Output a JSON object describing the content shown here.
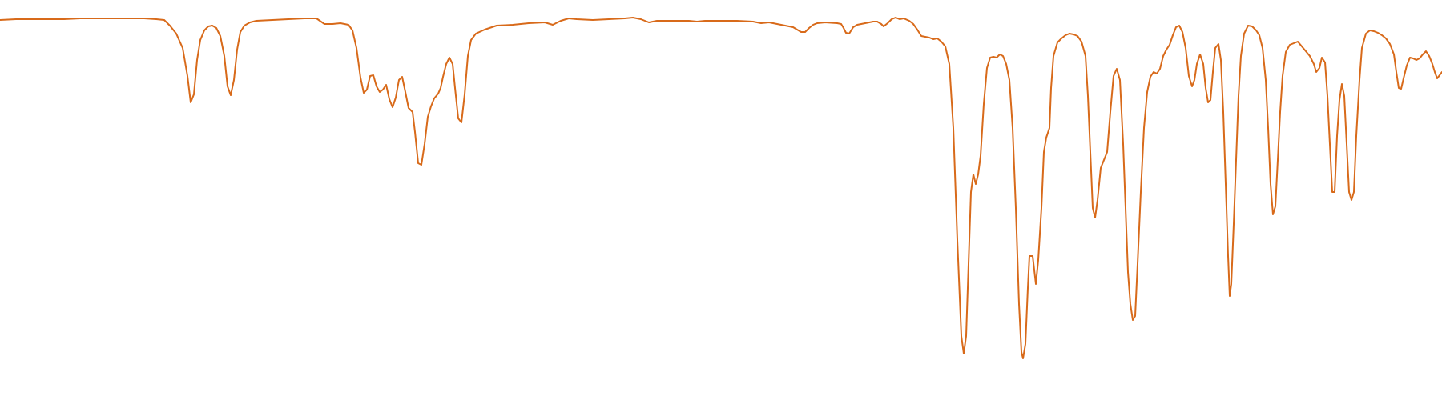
{
  "chart_data": {
    "type": "line",
    "title": "",
    "xlabel": "",
    "ylabel": "",
    "x_domain": [
      0,
      1800
    ],
    "y_domain": [
      0,
      500
    ],
    "y_inverted": true,
    "grid": false,
    "legend": "none",
    "series": [
      {
        "color": "#d86a1a",
        "points": [
          [
            0,
            25
          ],
          [
            20,
            24
          ],
          [
            40,
            24
          ],
          [
            60,
            24
          ],
          [
            80,
            24
          ],
          [
            100,
            23
          ],
          [
            120,
            23
          ],
          [
            140,
            23
          ],
          [
            160,
            23
          ],
          [
            180,
            23
          ],
          [
            195,
            24
          ],
          [
            205,
            25
          ],
          [
            212,
            32
          ],
          [
            220,
            42
          ],
          [
            228,
            60
          ],
          [
            234,
            95
          ],
          [
            238,
            128
          ],
          [
            242,
            118
          ],
          [
            246,
            75
          ],
          [
            250,
            50
          ],
          [
            255,
            38
          ],
          [
            260,
            33
          ],
          [
            265,
            32
          ],
          [
            270,
            35
          ],
          [
            275,
            45
          ],
          [
            280,
            70
          ],
          [
            284,
            108
          ],
          [
            288,
            119
          ],
          [
            292,
            100
          ],
          [
            296,
            62
          ],
          [
            300,
            40
          ],
          [
            305,
            32
          ],
          [
            312,
            28
          ],
          [
            320,
            26
          ],
          [
            340,
            25
          ],
          [
            360,
            24
          ],
          [
            380,
            23
          ],
          [
            395,
            23
          ],
          [
            405,
            30
          ],
          [
            415,
            30
          ],
          [
            425,
            29
          ],
          [
            435,
            31
          ],
          [
            440,
            38
          ],
          [
            445,
            60
          ],
          [
            450,
            97
          ],
          [
            454,
            116
          ],
          [
            458,
            112
          ],
          [
            462,
            95
          ],
          [
            466,
            94
          ],
          [
            470,
            108
          ],
          [
            474,
            115
          ],
          [
            478,
            112
          ],
          [
            482,
            106
          ],
          [
            486,
            124
          ],
          [
            490,
            134
          ],
          [
            494,
            122
          ],
          [
            498,
            100
          ],
          [
            502,
            96
          ],
          [
            506,
            115
          ],
          [
            510,
            135
          ],
          [
            515,
            140
          ],
          [
            518,
            165
          ],
          [
            522,
            204
          ],
          [
            526,
            206
          ],
          [
            530,
            180
          ],
          [
            534,
            146
          ],
          [
            538,
            133
          ],
          [
            542,
            123
          ],
          [
            547,
            117
          ],
          [
            550,
            110
          ],
          [
            553,
            96
          ],
          [
            557,
            80
          ],
          [
            561,
            72
          ],
          [
            565,
            80
          ],
          [
            568,
            110
          ],
          [
            572,
            148
          ],
          [
            576,
            153
          ],
          [
            580,
            118
          ],
          [
            584,
            70
          ],
          [
            588,
            50
          ],
          [
            594,
            42
          ],
          [
            605,
            37
          ],
          [
            620,
            32
          ],
          [
            640,
            31
          ],
          [
            660,
            29
          ],
          [
            680,
            28
          ],
          [
            690,
            31
          ],
          [
            700,
            26
          ],
          [
            710,
            23
          ],
          [
            720,
            24
          ],
          [
            740,
            25
          ],
          [
            760,
            24
          ],
          [
            780,
            23
          ],
          [
            790,
            22
          ],
          [
            800,
            24
          ],
          [
            810,
            28
          ],
          [
            820,
            26
          ],
          [
            840,
            26
          ],
          [
            860,
            26
          ],
          [
            870,
            27
          ],
          [
            880,
            26
          ],
          [
            900,
            26
          ],
          [
            920,
            26
          ],
          [
            940,
            27
          ],
          [
            950,
            29
          ],
          [
            960,
            28
          ],
          [
            970,
            30
          ],
          [
            980,
            32
          ],
          [
            990,
            34
          ],
          [
            1000,
            40
          ],
          [
            1005,
            40
          ],
          [
            1010,
            35
          ],
          [
            1015,
            31
          ],
          [
            1020,
            29
          ],
          [
            1030,
            28
          ],
          [
            1045,
            29
          ],
          [
            1050,
            30
          ],
          [
            1053,
            35
          ],
          [
            1056,
            41
          ],
          [
            1060,
            42
          ],
          [
            1065,
            34
          ],
          [
            1070,
            31
          ],
          [
            1075,
            30
          ],
          [
            1080,
            29
          ],
          [
            1085,
            28
          ],
          [
            1090,
            27
          ],
          [
            1095,
            27
          ],
          [
            1100,
            30
          ],
          [
            1103,
            33
          ],
          [
            1108,
            29
          ],
          [
            1113,
            24
          ],
          [
            1118,
            22
          ],
          [
            1123,
            24
          ],
          [
            1128,
            23
          ],
          [
            1135,
            26
          ],
          [
            1140,
            30
          ],
          [
            1145,
            37
          ],
          [
            1150,
            45
          ],
          [
            1155,
            46
          ],
          [
            1160,
            47
          ],
          [
            1165,
            49
          ],
          [
            1170,
            48
          ],
          [
            1175,
            52
          ],
          [
            1180,
            58
          ],
          [
            1185,
            80
          ],
          [
            1190,
            160
          ],
          [
            1195,
            300
          ],
          [
            1200,
            420
          ],
          [
            1203,
            442
          ],
          [
            1206,
            420
          ],
          [
            1209,
            330
          ],
          [
            1212,
            240
          ],
          [
            1215,
            218
          ],
          [
            1218,
            230
          ],
          [
            1221,
            218
          ],
          [
            1224,
            195
          ],
          [
            1228,
            130
          ],
          [
            1232,
            85
          ],
          [
            1236,
            72
          ],
          [
            1240,
            71
          ],
          [
            1244,
            72
          ],
          [
            1248,
            68
          ],
          [
            1252,
            70
          ],
          [
            1256,
            80
          ],
          [
            1260,
            100
          ],
          [
            1264,
            160
          ],
          [
            1268,
            260
          ],
          [
            1272,
            380
          ],
          [
            1275,
            440
          ],
          [
            1277,
            448
          ],
          [
            1280,
            430
          ],
          [
            1283,
            360
          ],
          [
            1285,
            320
          ],
          [
            1289,
            320
          ],
          [
            1293,
            355
          ],
          [
            1296,
            325
          ],
          [
            1300,
            260
          ],
          [
            1303,
            190
          ],
          [
            1306,
            172
          ],
          [
            1310,
            160
          ],
          [
            1312,
            110
          ],
          [
            1315,
            70
          ],
          [
            1320,
            53
          ],
          [
            1325,
            48
          ],
          [
            1330,
            44
          ],
          [
            1335,
            42
          ],
          [
            1340,
            43
          ],
          [
            1345,
            45
          ],
          [
            1350,
            52
          ],
          [
            1355,
            70
          ],
          [
            1358,
            120
          ],
          [
            1361,
            190
          ],
          [
            1364,
            260
          ],
          [
            1367,
            272
          ],
          [
            1370,
            250
          ],
          [
            1374,
            210
          ],
          [
            1378,
            200
          ],
          [
            1382,
            190
          ],
          [
            1386,
            140
          ],
          [
            1390,
            95
          ],
          [
            1394,
            86
          ],
          [
            1398,
            100
          ],
          [
            1402,
            180
          ],
          [
            1405,
            260
          ],
          [
            1408,
            340
          ],
          [
            1411,
            380
          ],
          [
            1414,
            400
          ],
          [
            1417,
            395
          ],
          [
            1420,
            330
          ],
          [
            1424,
            240
          ],
          [
            1428,
            160
          ],
          [
            1432,
            115
          ],
          [
            1436,
            96
          ],
          [
            1440,
            90
          ],
          [
            1444,
            92
          ],
          [
            1448,
            86
          ],
          [
            1452,
            70
          ],
          [
            1456,
            62
          ],
          [
            1460,
            56
          ],
          [
            1464,
            44
          ],
          [
            1468,
            34
          ],
          [
            1472,
            32
          ],
          [
            1476,
            40
          ],
          [
            1480,
            60
          ],
          [
            1484,
            95
          ],
          [
            1488,
            108
          ],
          [
            1491,
            100
          ],
          [
            1494,
            80
          ],
          [
            1498,
            68
          ],
          [
            1502,
            80
          ],
          [
            1505,
            110
          ],
          [
            1508,
            128
          ],
          [
            1511,
            125
          ],
          [
            1514,
            90
          ],
          [
            1517,
            60
          ],
          [
            1521,
            55
          ],
          [
            1524,
            75
          ],
          [
            1527,
            140
          ],
          [
            1530,
            230
          ],
          [
            1533,
            320
          ],
          [
            1535,
            370
          ],
          [
            1537,
            355
          ],
          [
            1540,
            280
          ],
          [
            1543,
            200
          ],
          [
            1546,
            120
          ],
          [
            1549,
            70
          ],
          [
            1553,
            42
          ],
          [
            1558,
            32
          ],
          [
            1563,
            33
          ],
          [
            1568,
            38
          ],
          [
            1572,
            44
          ],
          [
            1576,
            60
          ],
          [
            1580,
            100
          ],
          [
            1583,
            160
          ],
          [
            1586,
            230
          ],
          [
            1589,
            268
          ],
          [
            1592,
            258
          ],
          [
            1595,
            200
          ],
          [
            1598,
            140
          ],
          [
            1601,
            95
          ],
          [
            1605,
            65
          ],
          [
            1610,
            56
          ],
          [
            1615,
            54
          ],
          [
            1620,
            52
          ],
          [
            1625,
            58
          ],
          [
            1630,
            64
          ],
          [
            1635,
            70
          ],
          [
            1640,
            80
          ],
          [
            1643,
            90
          ],
          [
            1647,
            85
          ],
          [
            1650,
            72
          ],
          [
            1654,
            78
          ],
          [
            1657,
            120
          ],
          [
            1660,
            180
          ],
          [
            1663,
            240
          ],
          [
            1666,
            240
          ],
          [
            1669,
            170
          ],
          [
            1672,
            125
          ],
          [
            1675,
            105
          ],
          [
            1678,
            120
          ],
          [
            1681,
            180
          ],
          [
            1684,
            240
          ],
          [
            1687,
            250
          ],
          [
            1690,
            240
          ],
          [
            1693,
            170
          ],
          [
            1697,
            100
          ],
          [
            1700,
            60
          ],
          [
            1705,
            42
          ],
          [
            1710,
            38
          ],
          [
            1715,
            39
          ],
          [
            1720,
            41
          ],
          [
            1725,
            44
          ],
          [
            1730,
            48
          ],
          [
            1735,
            55
          ],
          [
            1740,
            68
          ],
          [
            1743,
            90
          ],
          [
            1746,
            110
          ],
          [
            1749,
            111
          ],
          [
            1752,
            98
          ],
          [
            1756,
            82
          ],
          [
            1760,
            72
          ],
          [
            1764,
            73
          ],
          [
            1768,
            75
          ],
          [
            1772,
            73
          ],
          [
            1776,
            68
          ],
          [
            1780,
            64
          ],
          [
            1784,
            70
          ],
          [
            1788,
            80
          ],
          [
            1791,
            90
          ],
          [
            1794,
            98
          ],
          [
            1797,
            94
          ],
          [
            1800,
            90
          ]
        ]
      }
    ]
  }
}
